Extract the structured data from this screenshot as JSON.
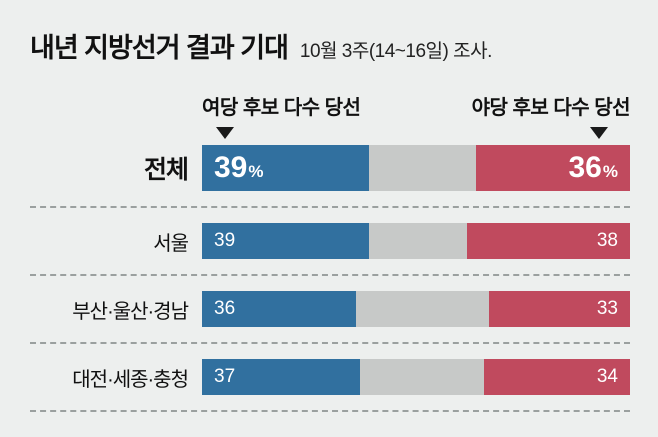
{
  "header": {
    "title": "내년 지방선거 결과 기대",
    "subtitle": "10월 3주(14~16일) 조사."
  },
  "columns": {
    "left": "여당 후보 다수 당선",
    "right": "야당 후보 다수 당선"
  },
  "colors": {
    "ruling_blue": "#31709f",
    "opposition_red": "#c04a5e",
    "undecided_gray": "#c7c9c8",
    "background": "#edefee",
    "marker_black": "#1a1a1a"
  },
  "chart_data": {
    "type": "bar",
    "subtype": "horizontal-stacked",
    "title": "내년 지방선거 결과 기대",
    "subtitle": "10월 3주(14~16일) 조사.",
    "unit": "%",
    "value_range": [
      0,
      100
    ],
    "categories": [
      "전체",
      "서울",
      "부산·울산·경남",
      "대전·세종·충청"
    ],
    "series": [
      {
        "name": "여당 후보 다수 당선",
        "values": [
          39,
          39,
          36,
          37
        ]
      },
      {
        "name": "야당 후보 다수 당선",
        "values": [
          36,
          38,
          33,
          34
        ]
      }
    ],
    "first_row_shows_percent_sign": true,
    "legend_position": "top",
    "grid": false
  }
}
